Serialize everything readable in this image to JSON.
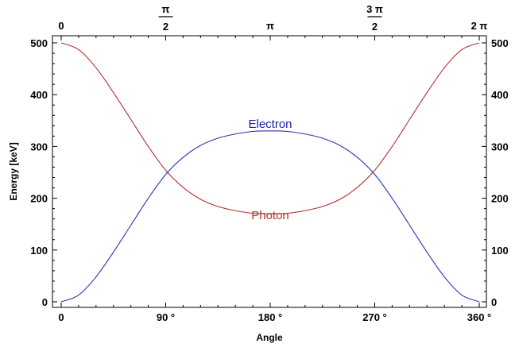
{
  "chart_data": {
    "type": "line",
    "xlabel": "Angle",
    "ylabel": "Energy [keV]",
    "xlim": [
      0,
      360
    ],
    "ylim": [
      0,
      500
    ],
    "grid": false,
    "x_ticks_bottom": [
      {
        "value": 0,
        "label": "0"
      },
      {
        "value": 90,
        "label": "90 °"
      },
      {
        "value": 180,
        "label": "180 °"
      },
      {
        "value": 270,
        "label": "270 °"
      },
      {
        "value": 360,
        "label": "360 °"
      }
    ],
    "x_ticks_top": [
      {
        "value": 0,
        "label": "0"
      },
      {
        "value": 90,
        "num": "π",
        "den": "2"
      },
      {
        "value": 180,
        "label": "π"
      },
      {
        "value": 270,
        "num": "3 π",
        "den": "2"
      },
      {
        "value": 360,
        "label": "2 π"
      }
    ],
    "y_ticks": [
      0,
      100,
      200,
      300,
      400,
      500
    ],
    "series": [
      {
        "name": "Photon",
        "color": "#b03030",
        "x": [
          0,
          15,
          30,
          45,
          60,
          75,
          90,
          105,
          120,
          135,
          150,
          165,
          180,
          195,
          210,
          225,
          240,
          255,
          270,
          285,
          300,
          315,
          330,
          345,
          360
        ],
        "y": [
          500,
          487,
          452,
          404,
          352,
          300,
          254,
          221,
          198,
          184,
          176,
          171,
          170,
          171,
          176,
          184,
          198,
          221,
          254,
          300,
          352,
          404,
          452,
          487,
          500
        ]
      },
      {
        "name": "Electron",
        "color": "#3030b0",
        "x": [
          0,
          15,
          30,
          45,
          60,
          75,
          90,
          105,
          120,
          135,
          150,
          165,
          180,
          195,
          210,
          225,
          240,
          255,
          270,
          285,
          300,
          315,
          330,
          345,
          360
        ],
        "y": [
          0,
          13,
          48,
          96,
          148,
          200,
          246,
          279,
          302,
          316,
          324,
          329,
          330,
          329,
          324,
          316,
          302,
          279,
          246,
          200,
          148,
          96,
          48,
          13,
          0
        ]
      }
    ],
    "annotations": [
      {
        "text": "Electron",
        "series": "Electron",
        "x": 180,
        "y": 333,
        "color": "#1f1fa8"
      },
      {
        "text": "Photon",
        "series": "Photon",
        "x": 180,
        "y": 176,
        "color": "#c03030"
      }
    ]
  }
}
